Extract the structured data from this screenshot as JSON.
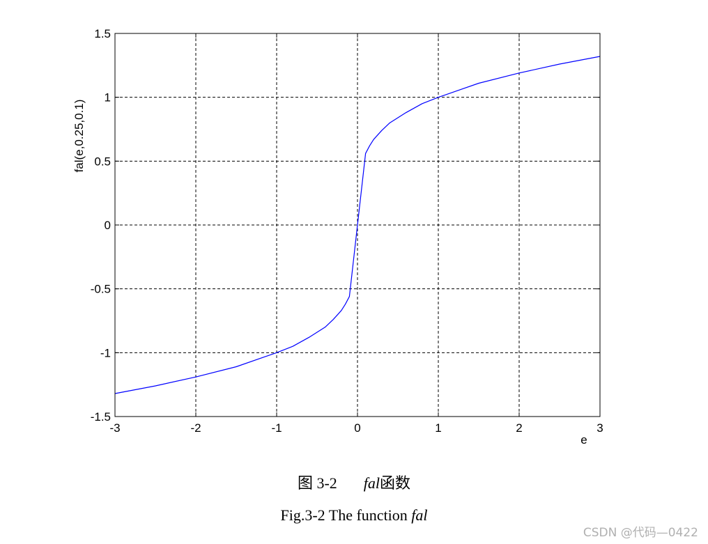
{
  "caption_cn": {
    "prefix": "图 3-2",
    "func": "fal",
    "suffix": "函数"
  },
  "caption_en": {
    "prefix": "Fig.3-2 The function ",
    "func": "fal"
  },
  "watermark": "CSDN @代码—0422",
  "chart_data": {
    "type": "line",
    "xlabel": "e",
    "ylabel": "fal(e,0.25,0.1)",
    "xlim": [
      -3,
      3
    ],
    "ylim": [
      -1.5,
      1.5
    ],
    "xticks": [
      "-3",
      "-2",
      "-1",
      "0",
      "1",
      "2",
      "3"
    ],
    "yticks": [
      "1.5",
      "1",
      "0.5",
      "0",
      "-0.5",
      "-1",
      "-1.5"
    ],
    "grid": true,
    "grid_style": "dashed",
    "line_color": "#0000ff",
    "series": [
      {
        "x": [
          -3,
          -2.5,
          -2,
          -1.5,
          -1,
          -0.8,
          -0.6,
          -0.4,
          -0.3,
          -0.2,
          -0.15,
          -0.1,
          -0.05,
          0,
          0.05,
          0.1,
          0.15,
          0.2,
          0.3,
          0.4,
          0.6,
          0.8,
          1,
          1.5,
          2,
          2.5,
          3
        ],
        "y": [
          -1.32,
          -1.26,
          -1.19,
          -1.11,
          -1.0,
          -0.95,
          -0.88,
          -0.8,
          -0.74,
          -0.67,
          -0.62,
          -0.56,
          -0.28,
          0,
          0.28,
          0.56,
          0.62,
          0.67,
          0.74,
          0.8,
          0.88,
          0.95,
          1.0,
          1.11,
          1.19,
          1.26,
          1.32
        ]
      }
    ]
  }
}
